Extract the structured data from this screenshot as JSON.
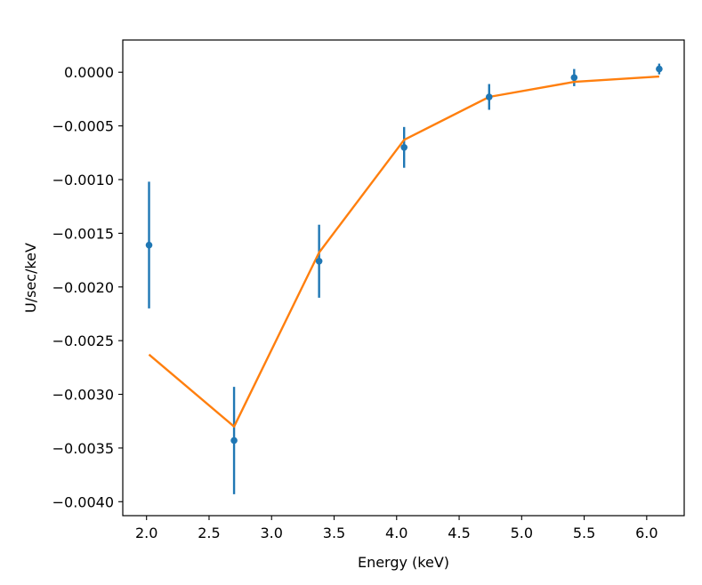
{
  "chart_data": {
    "type": "scatter",
    "title": "",
    "xlabel": "Energy (keV)",
    "ylabel": "U/sec/keV",
    "xlim": [
      1.81,
      6.3
    ],
    "ylim": [
      -0.00413,
      0.0003
    ],
    "grid": false,
    "legend": "none",
    "x_ticks": [
      2.0,
      2.5,
      3.0,
      3.5,
      4.0,
      4.5,
      5.0,
      5.5,
      6.0
    ],
    "x_tick_labels": [
      "2.0",
      "2.5",
      "3.0",
      "3.5",
      "4.0",
      "4.5",
      "5.0",
      "5.5",
      "6.0"
    ],
    "y_ticks": [
      0.0,
      -0.0005,
      -0.001,
      -0.0015,
      -0.002,
      -0.0025,
      -0.003,
      -0.0035,
      -0.004
    ],
    "y_tick_labels": [
      "0.0000",
      "−0.0005",
      "−0.0010",
      "−0.0015",
      "−0.0020",
      "−0.0025",
      "−0.0030",
      "−0.0035",
      "−0.0040"
    ],
    "series": [
      {
        "kind": "errorbar",
        "color": "#1f77b4",
        "x": [
          2.02,
          2.7,
          3.38,
          4.06,
          4.74,
          5.42,
          6.1
        ],
        "y": [
          -0.00161,
          -0.00343,
          -0.00176,
          -0.0007,
          -0.00023,
          -5e-05,
          3e-05
        ],
        "yerr": [
          0.00059,
          0.0005,
          0.00034,
          0.00019,
          0.00012,
          8e-05,
          5e-05
        ]
      },
      {
        "kind": "line",
        "color": "#ff7f0e",
        "x": [
          2.02,
          2.7,
          3.38,
          4.06,
          4.74,
          5.42,
          6.1
        ],
        "y": [
          -0.00263,
          -0.0033,
          -0.00168,
          -0.00063,
          -0.00023,
          -9e-05,
          -4e-05
        ]
      }
    ]
  }
}
